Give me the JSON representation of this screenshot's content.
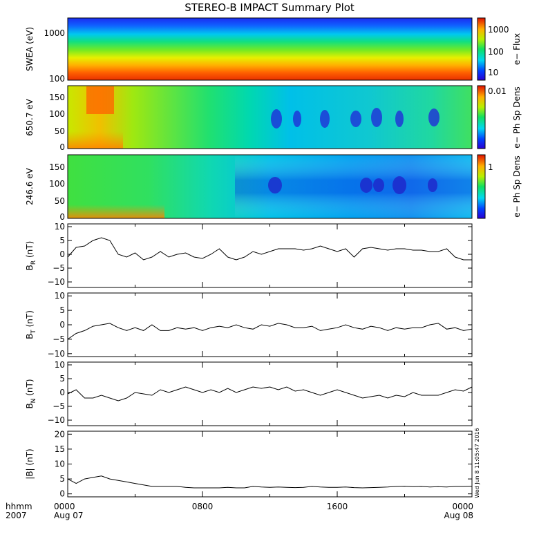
{
  "chart_data": {
    "title": "STEREO-B IMPACT Summary Plot",
    "time_axis": {
      "unit_label": "hhmm",
      "year_label": "2007",
      "range_hours": [
        0,
        24
      ],
      "ticks": [
        {
          "hour": 0,
          "label": "0000",
          "sublabel": "Aug 07"
        },
        {
          "hour": 8,
          "label": "0800",
          "sublabel": ""
        },
        {
          "hour": 16,
          "label": "1600",
          "sublabel": ""
        },
        {
          "hour": 24,
          "label": "0000",
          "sublabel": "Aug 08"
        }
      ]
    },
    "timestamp_text": "Wed Jun  8 11:05:47 2016",
    "panels": [
      {
        "type": "heatmap",
        "ylabel": "SWEA (eV)",
        "yscale": "log",
        "ylim": [
          100,
          2000
        ],
        "yticks": [
          "1000",
          "100"
        ],
        "colorbar": {
          "label": "e− Flux",
          "scale": "log",
          "ticks": [
            "1000",
            "100",
            "10"
          ]
        },
        "description_values": {
          "low_energy_flux": 2000,
          "high_energy_flux": 10
        }
      },
      {
        "type": "heatmap",
        "ylabel": "650.7 eV",
        "ylim": [
          0,
          180
        ],
        "yticks": [
          "150",
          "100",
          "50",
          "0"
        ],
        "colorbar": {
          "label": "e− Ph Sp Dens",
          "ticks": [
            "0.01"
          ]
        }
      },
      {
        "type": "heatmap",
        "ylabel": "246.6 eV",
        "ylim": [
          0,
          180
        ],
        "yticks": [
          "150",
          "100",
          "50",
          "0"
        ],
        "colorbar": {
          "label": "e− Ph Sp Dens",
          "ticks": [
            "1"
          ]
        }
      },
      {
        "type": "line",
        "ylabel_main": "B",
        "ylabel_sub": "R",
        "ylabel_unit": "(nT)",
        "ylim": [
          -12,
          11
        ],
        "yticks": [
          "10",
          "5",
          "0",
          "−5",
          "−10"
        ],
        "x": [
          0,
          0.5,
          1,
          1.5,
          2,
          2.5,
          3,
          3.5,
          4,
          4.5,
          5,
          5.5,
          6,
          6.5,
          7,
          7.5,
          8,
          8.5,
          9,
          9.5,
          10,
          10.5,
          11,
          11.5,
          12,
          12.5,
          13,
          13.5,
          14,
          14.5,
          15,
          15.5,
          16,
          16.5,
          17,
          17.5,
          18,
          18.5,
          19,
          19.5,
          20,
          20.5,
          21,
          21.5,
          22,
          22.5,
          23,
          23.5,
          24
        ],
        "y": [
          -1,
          2.5,
          3,
          5,
          6,
          5,
          0,
          -1,
          0.5,
          -2,
          -1,
          1,
          -1,
          0,
          0.5,
          -1,
          -1.5,
          0,
          2,
          -1,
          -2,
          -1,
          1,
          0,
          1,
          2,
          2,
          2,
          1.5,
          2,
          3,
          2,
          1,
          2,
          -1,
          2,
          2.5,
          2,
          1.5,
          2,
          2,
          1.5,
          1.5,
          1,
          1,
          2,
          -1,
          -2,
          -2
        ]
      },
      {
        "type": "line",
        "ylabel_main": "B",
        "ylabel_sub": "T",
        "ylabel_unit": "(nT)",
        "ylim": [
          -11,
          11
        ],
        "yticks": [
          "10",
          "5",
          "0",
          "−5",
          "−10"
        ],
        "x": [
          0,
          0.5,
          1,
          1.5,
          2,
          2.5,
          3,
          3.5,
          4,
          4.5,
          5,
          5.5,
          6,
          6.5,
          7,
          7.5,
          8,
          8.5,
          9,
          9.5,
          10,
          10.5,
          11,
          11.5,
          12,
          12.5,
          13,
          13.5,
          14,
          14.5,
          15,
          15.5,
          16,
          16.5,
          17,
          17.5,
          18,
          18.5,
          19,
          19.5,
          20,
          20.5,
          21,
          21.5,
          22,
          22.5,
          23,
          23.5,
          24
        ],
        "y": [
          -5,
          -3,
          -2,
          -0.5,
          0,
          0.5,
          -1,
          -2,
          -1,
          -2,
          0,
          -2,
          -2,
          -1,
          -1.5,
          -1,
          -2,
          -1,
          -0.5,
          -1,
          0,
          -1,
          -1.5,
          0,
          -0.5,
          0.5,
          0,
          -1,
          -1,
          -0.5,
          -2,
          -1.5,
          -1,
          0,
          -1,
          -1.5,
          -0.5,
          -1,
          -2,
          -1,
          -1.5,
          -1,
          -1,
          0,
          0.5,
          -1.5,
          -1,
          -2,
          -1.5
        ]
      },
      {
        "type": "line",
        "ylabel_main": "B",
        "ylabel_sub": "N",
        "ylabel_unit": "(nT)",
        "ylim": [
          -12,
          11
        ],
        "yticks": [
          "10",
          "5",
          "0",
          "−5",
          "−10"
        ],
        "x": [
          0,
          0.5,
          1,
          1.5,
          2,
          2.5,
          3,
          3.5,
          4,
          4.5,
          5,
          5.5,
          6,
          6.5,
          7,
          7.5,
          8,
          8.5,
          9,
          9.5,
          10,
          10.5,
          11,
          11.5,
          12,
          12.5,
          13,
          13.5,
          14,
          14.5,
          15,
          15.5,
          16,
          16.5,
          17,
          17.5,
          18,
          18.5,
          19,
          19.5,
          20,
          20.5,
          21,
          21.5,
          22,
          22.5,
          23,
          23.5,
          24
        ],
        "y": [
          -0.5,
          1,
          -2,
          -2,
          -1,
          -2,
          -3,
          -2,
          0,
          -0.5,
          -1,
          1,
          0,
          1,
          2,
          1,
          0,
          1,
          0,
          1.5,
          0,
          1,
          2,
          1.5,
          2,
          1,
          2,
          0.5,
          1,
          0,
          -1,
          0,
          1,
          0,
          -1,
          -2,
          -1.5,
          -1,
          -2,
          -1,
          -1.5,
          0,
          -1,
          -1,
          -1,
          0,
          1,
          0.5,
          2
        ]
      },
      {
        "type": "line",
        "ylabel_main": "|B|",
        "ylabel_sub": "",
        "ylabel_unit": "(nT)",
        "ylim": [
          -1,
          21
        ],
        "yticks": [
          "20",
          "15",
          "10",
          "5",
          "0"
        ],
        "x": [
          0,
          0.5,
          1,
          1.5,
          2,
          2.5,
          3,
          3.5,
          4,
          4.5,
          5,
          5.5,
          6,
          6.5,
          7,
          7.5,
          8,
          8.5,
          9,
          9.5,
          10,
          10.5,
          11,
          11.5,
          12,
          12.5,
          13,
          13.5,
          14,
          14.5,
          15,
          15.5,
          16,
          16.5,
          17,
          17.5,
          18,
          18.5,
          19,
          19.5,
          20,
          20.5,
          21,
          21.5,
          22,
          22.5,
          23,
          23.5,
          24
        ],
        "y": [
          5,
          3.5,
          5,
          5.5,
          6,
          5,
          4.5,
          4,
          3.5,
          3,
          2.5,
          2.5,
          2.5,
          2.5,
          2.2,
          2,
          2,
          2,
          2,
          2.2,
          2,
          2,
          2.5,
          2.3,
          2.2,
          2.3,
          2.2,
          2.1,
          2.2,
          2.5,
          2.3,
          2.2,
          2.2,
          2.3,
          2.1,
          2,
          2.1,
          2.2,
          2.3,
          2.5,
          2.6,
          2.4,
          2.5,
          2.3,
          2.4,
          2.3,
          2.5,
          2.5,
          2.6
        ]
      }
    ]
  }
}
